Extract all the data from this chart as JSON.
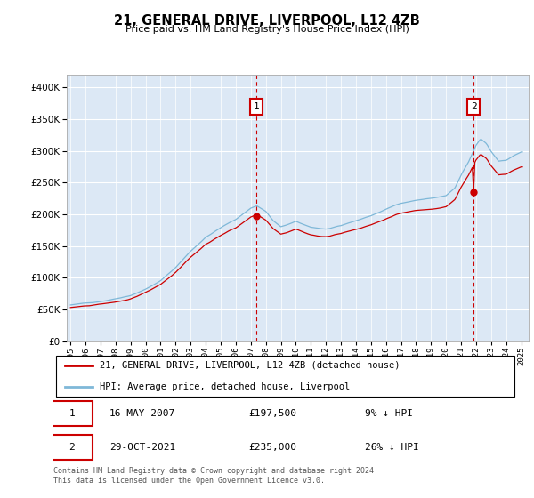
{
  "title": "21, GENERAL DRIVE, LIVERPOOL, L12 4ZB",
  "subtitle": "Price paid vs. HM Land Registry's House Price Index (HPI)",
  "legend_label1": "21, GENERAL DRIVE, LIVERPOOL, L12 4ZB (detached house)",
  "legend_label2": "HPI: Average price, detached house, Liverpool",
  "footer": "Contains HM Land Registry data © Crown copyright and database right 2024.\nThis data is licensed under the Open Government Licence v3.0.",
  "hpi_color": "#7fb8d8",
  "sale_color": "#cc0000",
  "vline_color": "#cc0000",
  "bg_color": "#dce8f5",
  "ylim": [
    0,
    420000
  ],
  "xlim": [
    1994.75,
    2025.5
  ],
  "yticks": [
    0,
    50000,
    100000,
    150000,
    200000,
    250000,
    300000,
    350000,
    400000
  ],
  "sale1_year": 2007.37,
  "sale1_value": 197500,
  "sale2_year": 2021.83,
  "sale2_value": 235000,
  "annotation1_date": "16-MAY-2007",
  "annotation1_price": "£197,500",
  "annotation1_hpi": "9% ↓ HPI",
  "annotation2_date": "29-OCT-2021",
  "annotation2_price": "£235,000",
  "annotation2_hpi": "26% ↓ HPI"
}
